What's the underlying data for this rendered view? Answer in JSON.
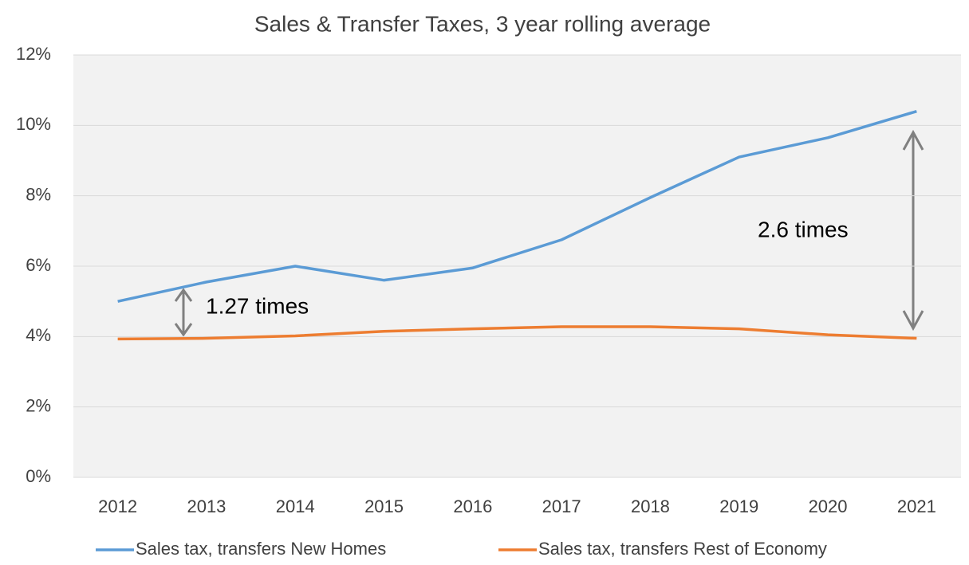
{
  "chart_data": {
    "type": "line",
    "title": "Sales & Transfer Taxes, 3 year rolling average",
    "categories": [
      "2012",
      "2013",
      "2014",
      "2015",
      "2016",
      "2017",
      "2018",
      "2019",
      "2020",
      "2021"
    ],
    "series": [
      {
        "name": "Sales tax, transfers New Homes",
        "color": "#5b9bd5",
        "values": [
          5.0,
          5.55,
          6.0,
          5.6,
          5.95,
          6.75,
          7.95,
          9.1,
          9.65,
          10.4
        ]
      },
      {
        "name": "Sales tax, transfers Rest of Economy",
        "color": "#ed7d31",
        "values": [
          3.93,
          3.95,
          4.02,
          4.15,
          4.22,
          4.28,
          4.28,
          4.22,
          4.05,
          3.95
        ]
      }
    ],
    "ylim": [
      0,
      12
    ],
    "yticks": [
      {
        "value": 0,
        "label": "0%"
      },
      {
        "value": 2,
        "label": "2%"
      },
      {
        "value": 4,
        "label": "4%"
      },
      {
        "value": 6,
        "label": "6%"
      },
      {
        "value": 8,
        "label": "8%"
      },
      {
        "value": 10,
        "label": "10%"
      },
      {
        "value": 12,
        "label": "12%"
      }
    ],
    "grid": true,
    "legend": "bottom",
    "annotations": [
      "1.27 times",
      "2.6 times"
    ]
  }
}
